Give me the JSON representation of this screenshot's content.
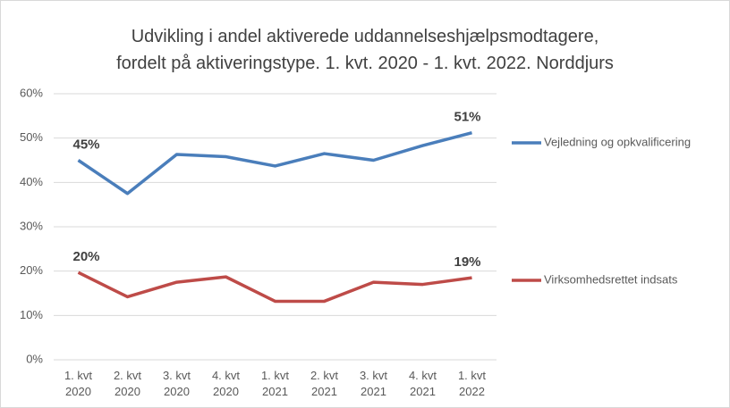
{
  "chart_data": {
    "type": "line",
    "title": "Udvikling i andel aktiverede uddannelseshjælpsmodtagere,\nfordelt på aktiveringstype. 1. kvt. 2020 - 1. kvt. 2022. Norddjurs",
    "categories": [
      "1. kvt\n2020",
      "2. kvt\n2020",
      "3. kvt\n2020",
      "4. kvt\n2020",
      "1. kvt\n2021",
      "2. kvt\n2021",
      "3. kvt\n2021",
      "4. kvt\n2021",
      "1. kvt\n2022"
    ],
    "series": [
      {
        "name": "Vejledning og opkvalificering",
        "color": "#4a7ebb",
        "values": [
          45,
          37.5,
          46.3,
          45.8,
          43.7,
          46.5,
          45,
          48.3,
          51.2
        ],
        "value_labels": [
          "45%",
          null,
          null,
          null,
          null,
          null,
          null,
          null,
          "51%"
        ]
      },
      {
        "name": "Virksomhedsrettet indsats",
        "color": "#be4b48",
        "values": [
          19.7,
          14.2,
          17.5,
          18.7,
          13.2,
          13.2,
          17.5,
          17,
          18.5
        ],
        "value_labels": [
          "20%",
          null,
          null,
          null,
          null,
          null,
          null,
          null,
          "19%"
        ]
      }
    ],
    "ylim": [
      0,
      60
    ],
    "yticks": [
      {
        "value": 0,
        "label": "0%"
      },
      {
        "value": 10,
        "label": "10%"
      },
      {
        "value": 20,
        "label": "20%"
      },
      {
        "value": 30,
        "label": "30%"
      },
      {
        "value": 40,
        "label": "40%"
      },
      {
        "value": 50,
        "label": "50%"
      },
      {
        "value": 60,
        "label": "60%"
      }
    ],
    "grid": true,
    "legend": "right"
  }
}
